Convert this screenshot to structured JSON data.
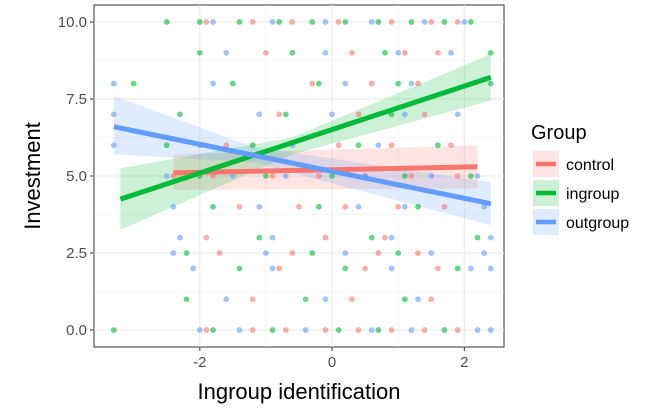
{
  "chart_data": {
    "type": "scatter",
    "xlabel": "Ingroup identification",
    "ylabel": "Investment",
    "xlim": [
      -3.6,
      2.6
    ],
    "ylim": [
      -0.55,
      10.55
    ],
    "x_ticks": [
      -2,
      0,
      2
    ],
    "x_tick_labels": [
      "-2",
      "0",
      "2"
    ],
    "y_ticks": [
      0,
      2.5,
      5,
      7.5,
      10
    ],
    "y_tick_labels": [
      "0.0",
      "2.5",
      "5.0",
      "7.5",
      "10.0"
    ],
    "grid": true,
    "legend": {
      "title": "Group",
      "placement": "right",
      "entries": [
        "control",
        "ingroup",
        "outgroup"
      ]
    },
    "colors": {
      "control": "#F8766D",
      "ingroup": "#00BA38",
      "outgroup": "#619CFF"
    },
    "series": [
      {
        "name": "control",
        "fit": {
          "x": [
            -2.4,
            2.2
          ],
          "y": [
            5.1,
            5.3
          ]
        },
        "band": {
          "x": [
            -2.4,
            2.2
          ],
          "lower": [
            4.55,
            4.6
          ],
          "upper": [
            5.7,
            6.0
          ]
        },
        "points": [
          [
            -1.9,
            10
          ],
          [
            -1.2,
            10
          ],
          [
            -0.6,
            10
          ],
          [
            0.1,
            10
          ],
          [
            0.9,
            10
          ],
          [
            1.5,
            10
          ],
          [
            1.9,
            10
          ],
          [
            -1.0,
            9
          ],
          [
            0.3,
            9
          ],
          [
            1.1,
            9
          ],
          [
            1.6,
            9
          ],
          [
            -0.3,
            8
          ],
          [
            0.6,
            8
          ],
          [
            1.3,
            8
          ],
          [
            -0.8,
            7
          ],
          [
            0.4,
            7
          ],
          [
            1.4,
            7
          ],
          [
            -1.6,
            6
          ],
          [
            0.1,
            6
          ],
          [
            0.9,
            6
          ],
          [
            1.8,
            6
          ],
          [
            -2.4,
            5
          ],
          [
            -1.8,
            5
          ],
          [
            -0.9,
            5
          ],
          [
            -0.2,
            5
          ],
          [
            0.5,
            5
          ],
          [
            1.2,
            5
          ],
          [
            1.9,
            5
          ],
          [
            -1.4,
            4
          ],
          [
            -0.5,
            4
          ],
          [
            0.2,
            4
          ],
          [
            1.0,
            4
          ],
          [
            1.7,
            4
          ],
          [
            -1.9,
            3
          ],
          [
            -0.1,
            3
          ],
          [
            0.8,
            3
          ],
          [
            -1.7,
            2.5
          ],
          [
            -0.6,
            2.5
          ],
          [
            0.7,
            2.5
          ],
          [
            1.3,
            2.5
          ],
          [
            -0.8,
            2
          ],
          [
            0.5,
            2
          ],
          [
            1.6,
            2
          ],
          [
            -1.2,
            1
          ],
          [
            0.3,
            1
          ],
          [
            1.5,
            1
          ],
          [
            -1.9,
            0
          ],
          [
            -1.2,
            0
          ],
          [
            -0.7,
            0
          ],
          [
            -0.1,
            0
          ],
          [
            0.4,
            0
          ],
          [
            0.9,
            0
          ],
          [
            1.4,
            0
          ],
          [
            1.9,
            0
          ]
        ]
      },
      {
        "name": "ingroup",
        "fit": {
          "x": [
            -3.2,
            2.4
          ],
          "y": [
            4.25,
            8.2
          ]
        },
        "band": {
          "x": [
            -3.2,
            -0.6,
            2.4
          ],
          "lower": [
            3.25,
            5.7,
            7.45
          ],
          "upper": [
            5.25,
            6.25,
            8.95
          ]
        },
        "points": [
          [
            -2.5,
            10
          ],
          [
            -2.0,
            10
          ],
          [
            -1.4,
            10
          ],
          [
            -0.8,
            10
          ],
          [
            -0.3,
            10
          ],
          [
            0.2,
            10
          ],
          [
            0.7,
            10
          ],
          [
            1.2,
            10
          ],
          [
            1.7,
            10
          ],
          [
            2.1,
            10
          ],
          [
            -2.0,
            9
          ],
          [
            -0.6,
            9
          ],
          [
            0.8,
            9
          ],
          [
            2.4,
            9
          ],
          [
            -3.0,
            8
          ],
          [
            -1.5,
            8
          ],
          [
            -0.2,
            8
          ],
          [
            1.0,
            8
          ],
          [
            2.4,
            8
          ],
          [
            -2.3,
            7
          ],
          [
            -0.7,
            7
          ],
          [
            0.9,
            7
          ],
          [
            -2.5,
            6
          ],
          [
            -1.2,
            6
          ],
          [
            0.4,
            6
          ],
          [
            1.6,
            6
          ],
          [
            -2.0,
            5
          ],
          [
            -1.0,
            5
          ],
          [
            0.0,
            5
          ],
          [
            1.1,
            5
          ],
          [
            2.1,
            5
          ],
          [
            -1.8,
            4
          ],
          [
            -0.2,
            4
          ],
          [
            1.3,
            4
          ],
          [
            -1.1,
            3
          ],
          [
            0.6,
            3
          ],
          [
            2.2,
            3
          ],
          [
            -2.2,
            2.5
          ],
          [
            -0.3,
            2.5
          ],
          [
            1.0,
            2.5
          ],
          [
            -1.4,
            2
          ],
          [
            0.2,
            2
          ],
          [
            1.9,
            2
          ],
          [
            -2.2,
            1
          ],
          [
            -0.4,
            1
          ],
          [
            1.1,
            1
          ],
          [
            -3.3,
            0
          ],
          [
            -1.8,
            0
          ],
          [
            -0.9,
            0
          ],
          [
            0.1,
            0
          ],
          [
            0.7,
            0
          ],
          [
            1.7,
            0
          ]
        ]
      },
      {
        "name": "outgroup",
        "fit": {
          "x": [
            -3.3,
            2.4
          ],
          "y": [
            6.6,
            4.1
          ]
        },
        "band": {
          "x": [
            -3.3,
            -1.2,
            2.4
          ],
          "lower": [
            5.7,
            5.45,
            3.4
          ],
          "upper": [
            7.6,
            5.95,
            4.8
          ]
        },
        "points": [
          [
            -1.8,
            10
          ],
          [
            -0.9,
            10
          ],
          [
            -0.1,
            10
          ],
          [
            0.6,
            10
          ],
          [
            1.4,
            10
          ],
          [
            2.0,
            10
          ],
          [
            -1.6,
            9
          ],
          [
            -0.1,
            9
          ],
          [
            1.0,
            9
          ],
          [
            1.8,
            9
          ],
          [
            -3.3,
            8
          ],
          [
            -1.8,
            8
          ],
          [
            0.2,
            8
          ],
          [
            1.2,
            8
          ],
          [
            -3.3,
            7
          ],
          [
            -1.1,
            7
          ],
          [
            0.0,
            7
          ],
          [
            1.1,
            7
          ],
          [
            1.9,
            7
          ],
          [
            -3.3,
            6
          ],
          [
            -2.0,
            6
          ],
          [
            -0.6,
            6
          ],
          [
            0.7,
            6
          ],
          [
            -2.5,
            5
          ],
          [
            -1.5,
            5
          ],
          [
            -0.7,
            5
          ],
          [
            0.5,
            5
          ],
          [
            1.5,
            5
          ],
          [
            2.2,
            5
          ],
          [
            -2.4,
            4
          ],
          [
            -1.1,
            4
          ],
          [
            0.4,
            4
          ],
          [
            1.1,
            4
          ],
          [
            2.3,
            4
          ],
          [
            -2.3,
            3
          ],
          [
            -0.9,
            3
          ],
          [
            0.9,
            3
          ],
          [
            2.4,
            3
          ],
          [
            -2.4,
            2.5
          ],
          [
            -1.0,
            2.5
          ],
          [
            0.2,
            2.5
          ],
          [
            1.5,
            2.5
          ],
          [
            2.3,
            2.5
          ],
          [
            -2.1,
            2
          ],
          [
            -0.9,
            2
          ],
          [
            0.9,
            2
          ],
          [
            2.1,
            2
          ],
          [
            2.4,
            2
          ],
          [
            -1.6,
            1
          ],
          [
            -0.1,
            1
          ],
          [
            1.3,
            1
          ],
          [
            -2.0,
            0
          ],
          [
            -1.4,
            0
          ],
          [
            -0.4,
            0
          ],
          [
            0.6,
            0
          ],
          [
            1.2,
            0
          ],
          [
            2.2,
            0
          ],
          [
            2.4,
            0
          ]
        ]
      }
    ]
  }
}
